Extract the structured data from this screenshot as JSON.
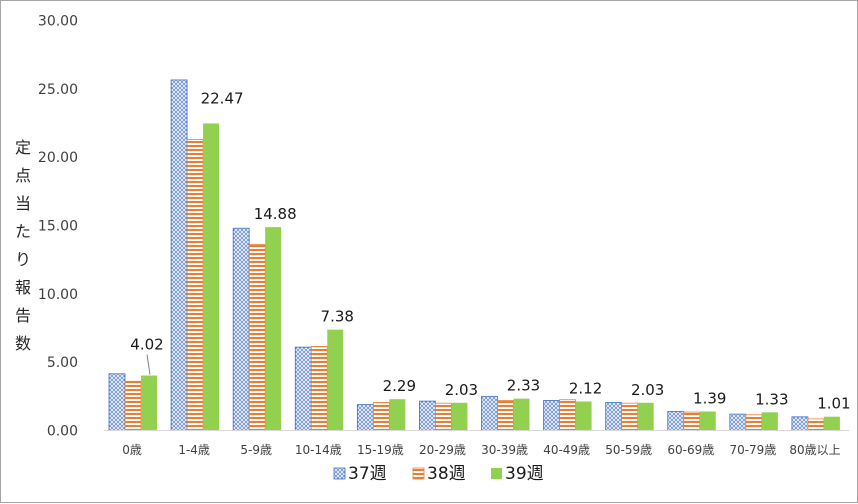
{
  "chart_data": {
    "type": "bar",
    "title": "",
    "xlabel": "",
    "ylabel": "定点当たり報告数",
    "ylim": [
      0,
      30
    ],
    "yticks": [
      "0.00",
      "5.00",
      "10.00",
      "15.00",
      "20.00",
      "25.00",
      "30.00"
    ],
    "grid": false,
    "legend_position": "bottom",
    "categories": [
      "0歳",
      "1-4歳",
      "5-9歳",
      "10-14歳",
      "15-19歳",
      "20-29歳",
      "30-39歳",
      "40-49歳",
      "50-59歳",
      "60-69歳",
      "70-79歳",
      "80歳以上"
    ],
    "series": [
      {
        "name": "37週",
        "color": "#4472c4",
        "pattern": "dots",
        "values": [
          4.15,
          25.65,
          14.8,
          6.1,
          1.9,
          2.15,
          2.5,
          2.2,
          2.05,
          1.4,
          1.2,
          1.0
        ]
      },
      {
        "name": "38週",
        "color": "#ed7d31",
        "pattern": "horizontal-stripes",
        "values": [
          3.6,
          21.3,
          13.6,
          6.15,
          2.05,
          2.0,
          2.2,
          2.25,
          2.0,
          1.35,
          1.15,
          0.85
        ]
      },
      {
        "name": "39週",
        "color": "#92d050",
        "pattern": "solid",
        "values": [
          4.02,
          22.47,
          14.88,
          7.38,
          2.29,
          2.03,
          2.33,
          2.12,
          2.03,
          1.39,
          1.33,
          1.01
        ]
      }
    ],
    "data_labels": [
      "4.02",
      "22.47",
      "14.88",
      "7.38",
      "2.29",
      "2.03",
      "2.33",
      "2.12",
      "2.03",
      "1.39",
      "1.33",
      "1.01"
    ]
  }
}
